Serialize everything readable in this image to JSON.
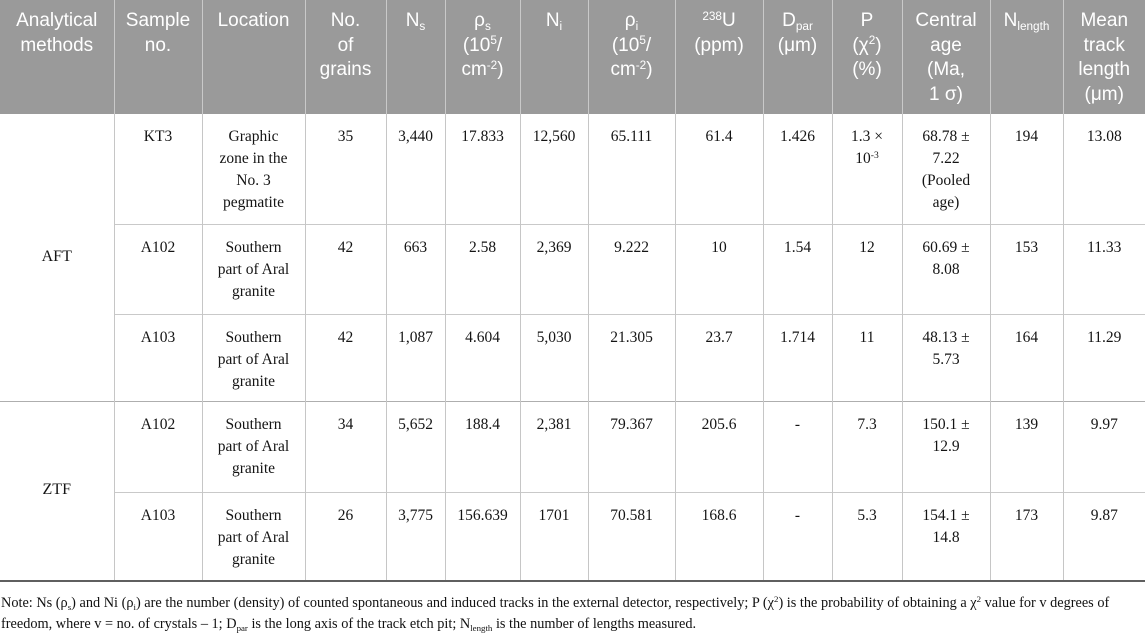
{
  "table": {
    "header": [
      {
        "id": "analytical-methods",
        "label": "Analytical\nmethods"
      },
      {
        "id": "sample-no",
        "label": "Sample\nno."
      },
      {
        "id": "location",
        "label": "Location"
      },
      {
        "id": "no-of-grains",
        "label": "No.\nof\ngrains"
      },
      {
        "id": "ns",
        "label": "N~s~"
      },
      {
        "id": "rho-s",
        "label": "ρ~s~\n(10^5^/\ncm^-2^)"
      },
      {
        "id": "ni",
        "label": "N~i~"
      },
      {
        "id": "rho-i",
        "label": "ρ~i~\n(10^5^/\ncm^-2^)"
      },
      {
        "id": "u-238",
        "label": "^238^U\n(ppm)"
      },
      {
        "id": "d-par",
        "label": "D~par~\n(μm)"
      },
      {
        "id": "p-chi2",
        "label": "P\n(χ^2^)\n(%)"
      },
      {
        "id": "central-age",
        "label": "Central\nage\n(Ma,\n1 σ)"
      },
      {
        "id": "n-length",
        "label": "N~length~"
      },
      {
        "id": "mean-track-length",
        "label": "Mean\ntrack\nlength\n(μm)"
      }
    ],
    "sections": [
      {
        "method": "AFT",
        "rows": [
          {
            "sample_no": "KT3",
            "location": "Graphic\nzone in the\nNo. 3\npegmatite",
            "no_of_grains": "35",
            "ns": "3,440",
            "rho_s": "17.833",
            "ni": "12,560",
            "rho_i": "65.111",
            "u_238": "61.4",
            "d_par": "1.426",
            "p_chi2": "1.3 ×\n10^-3^",
            "central_age": "68.78 ±\n7.22\n(Pooled\nage)",
            "n_length": "194",
            "mean_track_length": "13.08"
          },
          {
            "sample_no": "A102",
            "location": "Southern\npart of Aral\ngranite",
            "no_of_grains": "42",
            "ns": "663",
            "rho_s": "2.58",
            "ni": "2,369",
            "rho_i": "9.222",
            "u_238": "10",
            "d_par": "1.54",
            "p_chi2": "12",
            "central_age": "60.69 ±\n8.08",
            "n_length": "153",
            "mean_track_length": "11.33"
          },
          {
            "sample_no": "A103",
            "location": "Southern\npart of Aral\ngranite",
            "no_of_grains": "42",
            "ns": "1,087",
            "rho_s": "4.604",
            "ni": "5,030",
            "rho_i": "21.305",
            "u_238": "23.7",
            "d_par": "1.714",
            "p_chi2": "11",
            "central_age": "48.13 ±\n5.73",
            "n_length": "164",
            "mean_track_length": "11.29"
          }
        ]
      },
      {
        "method": "ZTF",
        "rows": [
          {
            "sample_no": "A102",
            "location": "Southern\npart of Aral\ngranite",
            "no_of_grains": "34",
            "ns": "5,652",
            "rho_s": "188.4",
            "ni": "2,381",
            "rho_i": "79.367",
            "u_238": "205.6",
            "d_par": "-",
            "p_chi2": "7.3",
            "central_age": "150.1 ±\n12.9",
            "n_length": "139",
            "mean_track_length": "9.97"
          },
          {
            "sample_no": "A103",
            "location": "Southern\npart of Aral\ngranite",
            "no_of_grains": "26",
            "ns": "3,775",
            "rho_s": "156.639",
            "ni": "1701",
            "rho_i": "70.581",
            "u_238": "168.6",
            "d_par": "-",
            "p_chi2": "5.3",
            "central_age": "154.1 ±\n14.8",
            "n_length": "173",
            "mean_track_length": "9.87"
          }
        ]
      }
    ]
  },
  "note": "Note: Ns (ρ~s~) and Ni (ρ~i~) are the number (density) of counted spontaneous and induced tracks in the external detector, respectively; P (χ^2^) is the probability of obtaining a χ^2^ value for v degrees of freedom, where v = no. of crystals – 1; D~par~ is the long axis of the track etch pit; N~length~ is the number of lengths measured.",
  "colors": {
    "header_bg": "#9a9a9a",
    "header_text": "#ffffff",
    "body_text": "#141414",
    "grid_light": "#c9c9c9",
    "grid_section": "#aeaeae",
    "table_bottom": "#5f5f5f"
  }
}
